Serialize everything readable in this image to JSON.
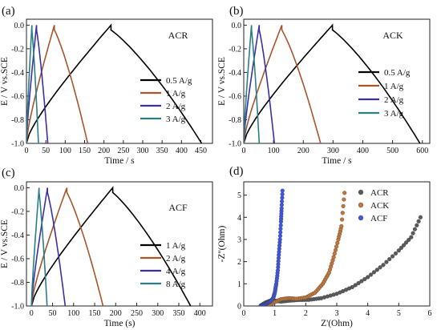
{
  "chart_data": [
    {
      "panel": "(a)",
      "type": "line",
      "title": "ACR",
      "xlabel": "Time / s",
      "ylabel": "E / V vs.SCE",
      "xlim": [
        0,
        480
      ],
      "ylim": [
        -1.0,
        0.05
      ],
      "xticks": [
        0,
        50,
        100,
        150,
        200,
        250,
        300,
        350,
        400,
        450
      ],
      "yticks": [
        0.0,
        -0.2,
        -0.4,
        -0.6,
        -0.8,
        -1.0
      ],
      "ytick_labels": [
        "0.0",
        "-0.2",
        "-0.4",
        "-0.6",
        "-0.8",
        "-1.0"
      ],
      "legend_position": "right",
      "series": [
        {
          "name": "0.5 A/g",
          "color": "#000000",
          "charge_end": 218,
          "discharge_end": 452
        },
        {
          "name": "1 A/g",
          "color": "#a9552b",
          "charge_end": 72,
          "discharge_end": 158
        },
        {
          "name": "2 A/g",
          "color": "#3b2fa8",
          "charge_end": 26,
          "discharge_end": 55
        },
        {
          "name": "3 A/g",
          "color": "#2a7f86",
          "charge_end": 14,
          "discharge_end": 31
        }
      ]
    },
    {
      "panel": "(b)",
      "type": "line",
      "title": "ACK",
      "xlabel": "Time / s",
      "ylabel": "E / V vs.SCE",
      "xlim": [
        0,
        625
      ],
      "ylim": [
        -1.0,
        0.05
      ],
      "xticks": [
        0,
        100,
        200,
        300,
        400,
        500,
        600
      ],
      "yticks": [
        0.0,
        -0.2,
        -0.4,
        -0.6,
        -0.8,
        -1.0
      ],
      "ytick_labels": [
        "0.0",
        "-0.2",
        "-0.4",
        "-0.6",
        "-0.8",
        "-1.0"
      ],
      "legend_position": "right",
      "series": [
        {
          "name": "0.5 A/g",
          "color": "#000000",
          "charge_end": 298,
          "discharge_end": 592
        },
        {
          "name": "1 A/g",
          "color": "#a9552b",
          "charge_end": 128,
          "discharge_end": 258
        },
        {
          "name": "2 A/g",
          "color": "#3b2fa8",
          "charge_end": 52,
          "discharge_end": 103
        },
        {
          "name": "3 A/g",
          "color": "#2a7f86",
          "charge_end": 26,
          "discharge_end": 52
        }
      ]
    },
    {
      "panel": "(c)",
      "type": "line",
      "title": "ACF",
      "xlabel": "Time (s)",
      "ylabel": "E / V vs.SCE",
      "xlim": [
        -12,
        430
      ],
      "ylim": [
        -1.0,
        0.05
      ],
      "xticks": [
        0,
        50,
        100,
        150,
        200,
        250,
        300,
        350,
        400
      ],
      "yticks": [
        0.0,
        -0.2,
        -0.4,
        -0.6,
        -0.8,
        -1.0
      ],
      "ytick_labels": [
        "0.0",
        "-0.2",
        "-0.4",
        "-0.6",
        "-0.8",
        "-1.0"
      ],
      "legend_position": "right",
      "series": [
        {
          "name": "1 A/g",
          "color": "#000000",
          "charge_end": 193,
          "discharge_end": 378
        },
        {
          "name": "2 A/g",
          "color": "#a9552b",
          "charge_end": 84,
          "discharge_end": 170
        },
        {
          "name": "4 A/g",
          "color": "#3b2fa8",
          "charge_end": 38,
          "discharge_end": 80
        },
        {
          "name": "8 A/g",
          "color": "#2a7f86",
          "charge_end": 18,
          "discharge_end": 37
        }
      ]
    },
    {
      "panel": "(d)",
      "type": "scatter",
      "title": "",
      "xlabel": "Z'(Ohm)",
      "ylabel": "-Z''(Ohm)",
      "xlim": [
        0,
        6
      ],
      "ylim": [
        0,
        5.6
      ],
      "xticks": [
        0,
        1,
        2,
        3,
        4,
        5,
        6
      ],
      "yticks": [
        0,
        1,
        2,
        3,
        4,
        5
      ],
      "ytick_labels": [
        "0",
        "1",
        "2",
        "3",
        "4",
        "5"
      ],
      "legend_position": "top-right",
      "series": [
        {
          "name": "ACR",
          "color": "#5a5a5a",
          "points": [
            [
              0.55,
              0.02
            ],
            [
              0.7,
              0.15
            ],
            [
              0.85,
              0.23
            ],
            [
              1.0,
              0.24
            ],
            [
              1.2,
              0.2
            ],
            [
              1.45,
              0.24
            ],
            [
              1.75,
              0.27
            ],
            [
              2.1,
              0.28
            ],
            [
              2.5,
              0.35
            ],
            [
              3.0,
              0.55
            ],
            [
              3.5,
              0.85
            ],
            [
              4.0,
              1.3
            ],
            [
              4.5,
              1.85
            ],
            [
              5.0,
              2.5
            ],
            [
              5.4,
              3.1
            ],
            [
              5.7,
              4.0
            ]
          ]
        },
        {
          "name": "ACK",
          "color": "#c0773a",
          "points": [
            [
              0.8,
              0.02
            ],
            [
              1.0,
              0.18
            ],
            [
              1.2,
              0.3
            ],
            [
              1.45,
              0.35
            ],
            [
              1.7,
              0.32
            ],
            [
              2.0,
              0.38
            ],
            [
              2.3,
              0.6
            ],
            [
              2.55,
              1.0
            ],
            [
              2.75,
              1.5
            ],
            [
              2.9,
              2.2
            ],
            [
              3.05,
              3.0
            ],
            [
              3.15,
              3.6
            ],
            [
              3.25,
              5.1
            ]
          ]
        },
        {
          "name": "ACF",
          "color": "#3f56e0",
          "points": [
            [
              0.55,
              0.02
            ],
            [
              0.65,
              0.05
            ],
            [
              0.75,
              0.12
            ],
            [
              0.85,
              0.2
            ],
            [
              0.95,
              0.35
            ],
            [
              1.0,
              0.6
            ],
            [
              1.05,
              1.0
            ],
            [
              1.1,
              1.6
            ],
            [
              1.13,
              2.3
            ],
            [
              1.17,
              3.0
            ],
            [
              1.2,
              3.8
            ],
            [
              1.22,
              4.4
            ],
            [
              1.25,
              5.2
            ]
          ]
        }
      ]
    }
  ]
}
